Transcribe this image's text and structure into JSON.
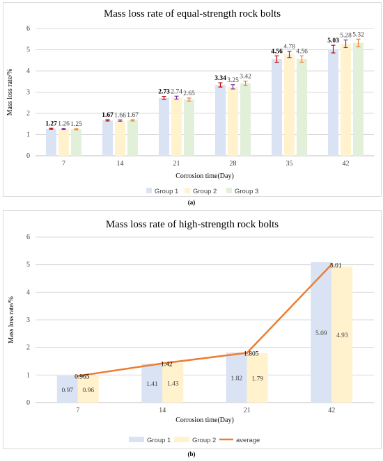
{
  "figure": {
    "caption_a": "(a)",
    "caption_b": "(b)"
  },
  "colors": {
    "group1": "#dae3f3",
    "group2": "#fff2cc",
    "group3": "#e2f0d9",
    "average": "#ed7d31",
    "errorbar_group1": "#c00000",
    "errorbar_group2": "#7030a0",
    "errorbar_group3": "#ed7d31",
    "grid": "#d9d9d9",
    "axis_text": "#404040"
  },
  "chart_data": [
    {
      "type": "bar",
      "title": "Mass loss rate of equal-strength rock bolts",
      "xlabel": "Corrosion time(Day)",
      "ylabel": "Mass loss rate/%",
      "categories": [
        "7",
        "14",
        "21",
        "28",
        "35",
        "42"
      ],
      "ylim": [
        0,
        6
      ],
      "yticks": [
        "0",
        "1",
        "2",
        "3",
        "4",
        "5",
        "6"
      ],
      "grid": true,
      "legend": "bottom",
      "series": [
        {
          "name": "Group 1",
          "values": [
            1.27,
            1.67,
            2.73,
            3.34,
            4.56,
            5.03
          ],
          "labels": [
            "1.27",
            "1.67",
            "2.73",
            "3.34",
            "4.56",
            "5.03"
          ],
          "errors": [
            0.03,
            0.03,
            0.07,
            0.1,
            0.15,
            0.18
          ]
        },
        {
          "name": "Group 2",
          "values": [
            1.26,
            1.66,
            2.74,
            3.25,
            4.78,
            5.28
          ],
          "labels": [
            "1.26",
            "1.66",
            "2.74",
            "3.25",
            "4.78",
            "5.28"
          ],
          "errors": [
            0.03,
            0.03,
            0.07,
            0.1,
            0.15,
            0.18
          ]
        },
        {
          "name": "Group 3",
          "values": [
            1.25,
            1.67,
            2.65,
            3.42,
            4.56,
            5.32
          ],
          "labels": [
            "1.25",
            "1.67",
            "2.65",
            "3.42",
            "4.56",
            "5.32"
          ],
          "errors": [
            0.03,
            0.03,
            0.07,
            0.1,
            0.15,
            0.18
          ]
        }
      ]
    },
    {
      "type": "bar",
      "title": "Mass loss rate of high-strength rock bolts",
      "xlabel": "Corrosion time(Day)",
      "ylabel": "Mass loss rate/%",
      "categories": [
        "7",
        "14",
        "21",
        "42"
      ],
      "ylim": [
        0,
        6
      ],
      "yticks": [
        "0",
        "1",
        "2",
        "3",
        "4",
        "5",
        "6"
      ],
      "grid": true,
      "legend": "bottom",
      "series": [
        {
          "name": "Group 1",
          "values": [
            0.97,
            1.41,
            1.82,
            5.09
          ],
          "labels": [
            "0.97",
            "1.41",
            "1.82",
            "5.09"
          ]
        },
        {
          "name": "Group 2",
          "values": [
            0.96,
            1.43,
            1.79,
            4.93
          ],
          "labels": [
            "0.96",
            "1.43",
            "1.79",
            "4.93"
          ]
        }
      ],
      "line_series": {
        "name": "average",
        "type": "line",
        "values": [
          0.965,
          1.42,
          1.805,
          5.01
        ],
        "labels": [
          "0.965",
          "1.42",
          "1.805",
          "5.01"
        ]
      }
    }
  ]
}
